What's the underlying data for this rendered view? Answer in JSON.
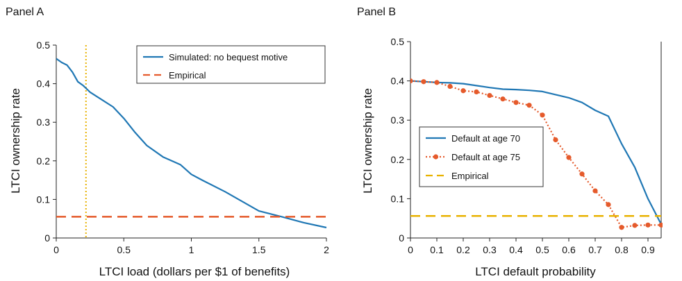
{
  "chart_data": [
    {
      "type": "line",
      "panel": "Panel A",
      "xlabel": "LTCI load (dollars per $1 of benefits)",
      "ylabel": "LTCI ownership rate",
      "xlim": [
        0,
        2
      ],
      "ylim": [
        0,
        0.5
      ],
      "xticks": [
        0,
        0.5,
        1,
        1.5,
        2
      ],
      "xtick_labels": [
        "0",
        "0.5",
        "1",
        "1.5",
        "2"
      ],
      "yticks": [
        0,
        0.1,
        0.2,
        0.3,
        0.4,
        0.5
      ],
      "ytick_labels": [
        "0",
        "0.1",
        "0.2",
        "0.3",
        "0.4",
        "0.5"
      ],
      "legend_position": "top-right",
      "series": [
        {
          "name": "Simulated: no bequest motive",
          "color": "#1f77b4",
          "style": "solid",
          "x": [
            0,
            0.04,
            0.08,
            0.12,
            0.16,
            0.2,
            0.25,
            0.33,
            0.42,
            0.5,
            0.58,
            0.67,
            0.79,
            0.92,
            1.0,
            1.08,
            1.25,
            1.5,
            1.67,
            1.83,
            2.0
          ],
          "y": [
            0.465,
            0.455,
            0.448,
            0.43,
            0.405,
            0.395,
            0.378,
            0.36,
            0.34,
            0.31,
            0.275,
            0.24,
            0.21,
            0.19,
            0.165,
            0.15,
            0.12,
            0.07,
            0.055,
            0.04,
            0.027
          ]
        },
        {
          "name": "Empirical",
          "color": "#e55a2b",
          "style": "dashed",
          "x": [
            0,
            2
          ],
          "y": [
            0.055,
            0.055
          ]
        }
      ],
      "reference_lines": [
        {
          "orientation": "vertical",
          "x": 0.22,
          "color": "#e8b200",
          "style": "dotted"
        }
      ]
    },
    {
      "type": "line",
      "panel": "Panel B",
      "xlabel": "LTCI default probability",
      "ylabel": "LTCI ownership rate",
      "xlim": [
        0,
        0.95
      ],
      "ylim": [
        0,
        0.5
      ],
      "xticks": [
        0,
        0.1,
        0.2,
        0.3,
        0.4,
        0.5,
        0.6,
        0.7,
        0.8,
        0.9
      ],
      "xtick_labels": [
        "0",
        "0.1",
        "0.2",
        "0.3",
        "0.4",
        "0.5",
        "0.6",
        "0.7",
        "0.8",
        "0.9"
      ],
      "yticks": [
        0,
        0.1,
        0.2,
        0.3,
        0.4,
        0.5
      ],
      "ytick_labels": [
        "0",
        "0.1",
        "0.2",
        "0.3",
        "0.4",
        "0.5"
      ],
      "legend_position": "middle-left",
      "series": [
        {
          "name": "Default at age 70",
          "color": "#1f77b4",
          "style": "solid",
          "marker": "none",
          "x": [
            0,
            0.05,
            0.1,
            0.15,
            0.2,
            0.25,
            0.3,
            0.35,
            0.4,
            0.45,
            0.5,
            0.55,
            0.6,
            0.65,
            0.7,
            0.75,
            0.8,
            0.85,
            0.9,
            0.95
          ],
          "y": [
            0.4,
            0.398,
            0.396,
            0.395,
            0.393,
            0.388,
            0.383,
            0.379,
            0.378,
            0.376,
            0.373,
            0.365,
            0.357,
            0.345,
            0.325,
            0.31,
            0.24,
            0.18,
            0.1,
            0.035
          ]
        },
        {
          "name": "Default at age 75",
          "color": "#e55a2b",
          "style": "dotted",
          "marker": "circle",
          "x": [
            0,
            0.05,
            0.1,
            0.15,
            0.2,
            0.25,
            0.3,
            0.35,
            0.4,
            0.45,
            0.5,
            0.55,
            0.6,
            0.65,
            0.7,
            0.75,
            0.8,
            0.85,
            0.9,
            0.95
          ],
          "y": [
            0.4,
            0.398,
            0.396,
            0.386,
            0.375,
            0.372,
            0.363,
            0.354,
            0.345,
            0.338,
            0.313,
            0.25,
            0.205,
            0.163,
            0.12,
            0.085,
            0.027,
            0.032,
            0.033,
            0.033
          ]
        },
        {
          "name": "Empirical",
          "color": "#e8b200",
          "style": "dashed",
          "marker": "none",
          "x": [
            0,
            0.95
          ],
          "y": [
            0.056,
            0.056
          ]
        }
      ]
    }
  ]
}
